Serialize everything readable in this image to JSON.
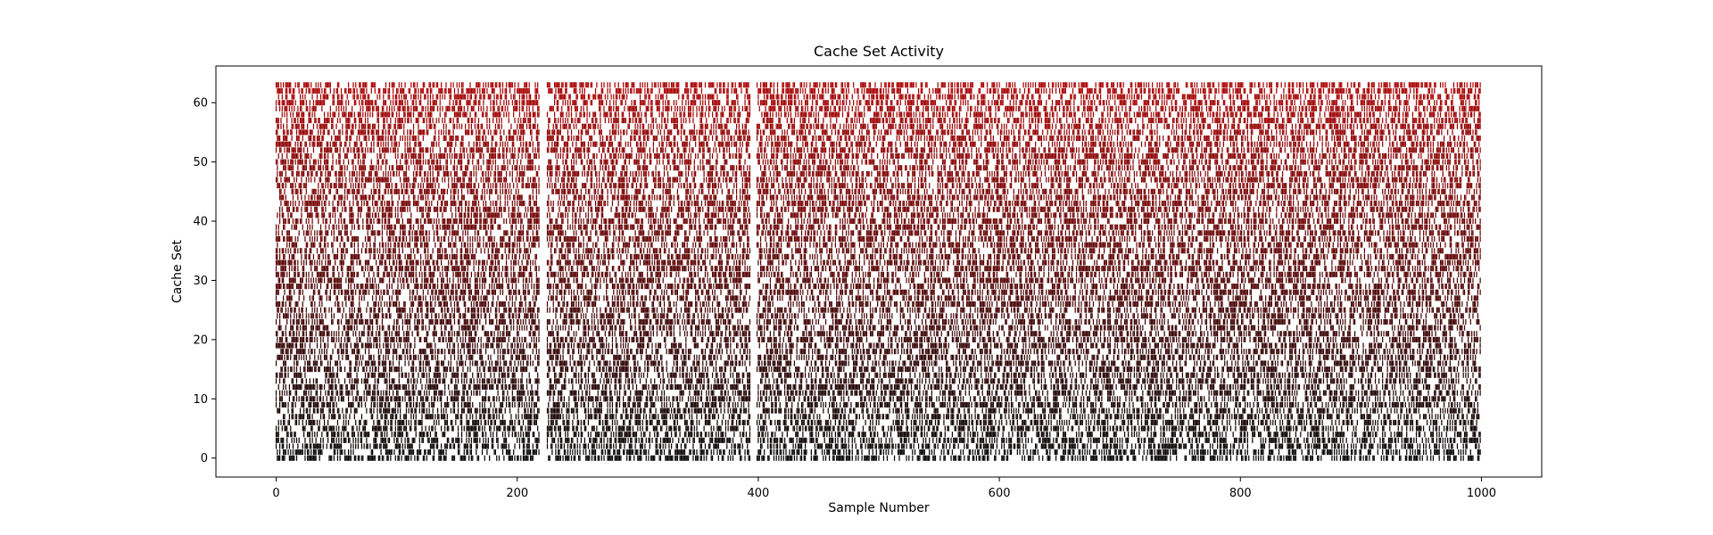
{
  "chart_data": {
    "type": "scatter",
    "title": "Cache Set Activity",
    "xlabel": "Sample Number",
    "ylabel": "Cache Set",
    "xlim": [
      -50,
      1050
    ],
    "ylim": [
      -3.2,
      66.2
    ],
    "xticks": [
      0,
      200,
      400,
      600,
      800,
      1000
    ],
    "yticks": [
      0,
      10,
      20,
      30,
      40,
      50,
      60
    ],
    "grid": false,
    "marker": "vertical-bar",
    "color_map": {
      "low": "#000000",
      "high": "#aa0000",
      "by": "cache set"
    },
    "series": [
      {
        "note_density": "each sample shows a random subset of the 64 cache sets as active",
        "samples_range": [
          0,
          999
        ],
        "sets_range": [
          0,
          63
        ],
        "gap_ranges": [
          [
            219,
            224
          ],
          [
            394,
            398
          ]
        ]
      }
    ]
  }
}
